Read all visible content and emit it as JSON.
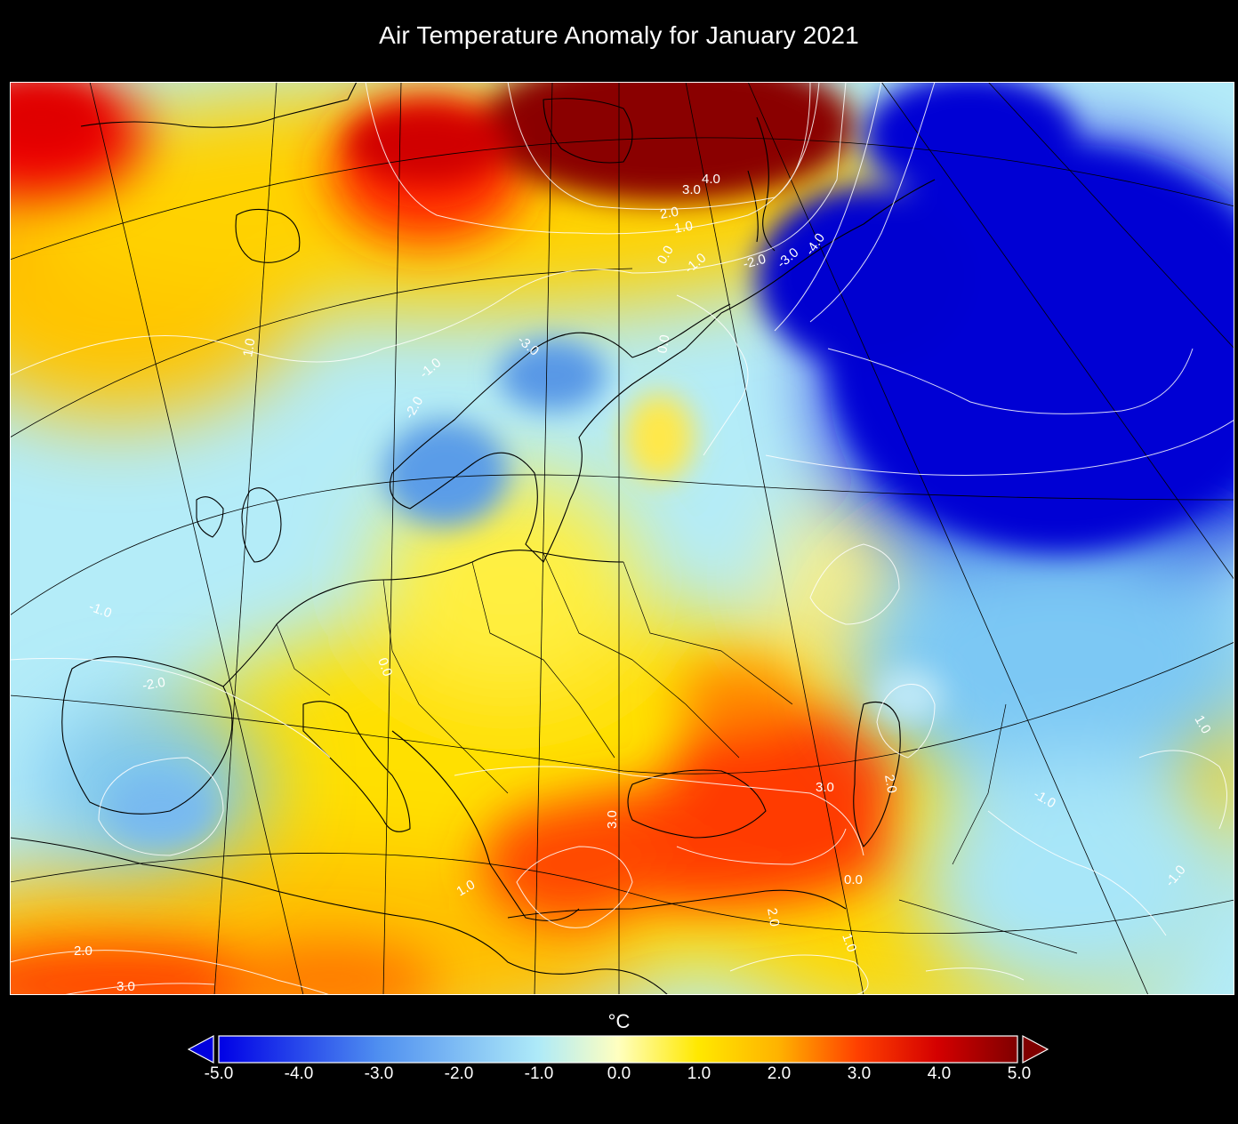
{
  "title": "Air Temperature Anomaly for January 2021",
  "colorbar": {
    "unit": "°C",
    "min": -5.0,
    "max": 5.0,
    "extend": "both",
    "ticks": [
      "-5.0",
      "-4.0",
      "-3.0",
      "-2.0",
      "-1.0",
      "0.0",
      "1.0",
      "2.0",
      "3.0",
      "4.0",
      "5.0"
    ],
    "colors": {
      "below_min": "#0000dd",
      "stop_neg5": "#0000e6",
      "stop_neg3": "#4f8ff0",
      "stop_neg1": "#aeeaf8",
      "stop_0": "#ffffc0",
      "stop_1": "#ffe800",
      "stop_2": "#ffb300",
      "stop_3": "#ff4000",
      "stop_4": "#d40000",
      "above_max": "#800000"
    }
  },
  "map": {
    "region": "Europe",
    "month": "January 2021",
    "contour_labels": {
      "arctic": [
        "4.0",
        "3.0",
        "2.0",
        "1.0",
        "0.0",
        "-1.0",
        "-2.0",
        "-3.0",
        "-4.0"
      ],
      "scandinavia": [
        "-3.0",
        "-1.0",
        "-2.0",
        "0.0"
      ],
      "atlantic": [
        "1.0",
        "-1.0"
      ],
      "iberia": [
        "-2.0"
      ],
      "central": [
        "0.0"
      ],
      "balkans_blacksea": [
        "3.0",
        "3.0",
        "2.0"
      ],
      "east": [
        "-1.0",
        "-1.0",
        "1.0"
      ],
      "mediterranean": [
        "2.0",
        "3.0",
        "1.0",
        "2.0",
        "1.0",
        "0.0"
      ]
    }
  }
}
